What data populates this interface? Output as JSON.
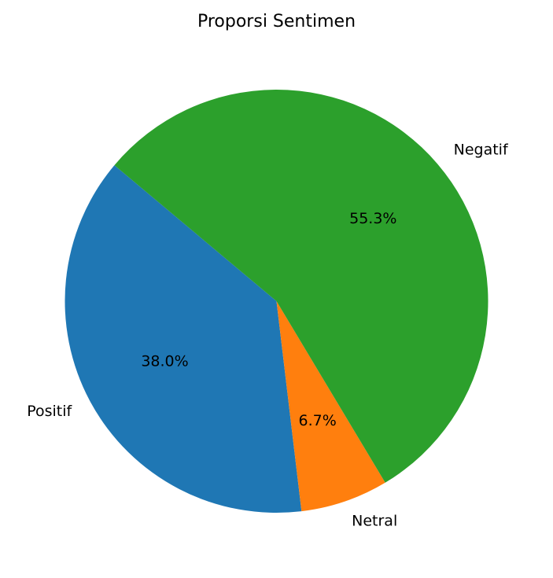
{
  "chart_data": {
    "type": "pie",
    "title": "Proporsi Sentimen",
    "start_angle_deg": 140,
    "direction": "counterclockwise",
    "slices": [
      {
        "label": "Positif",
        "value": 38.0,
        "pct_label": "38.0%",
        "color": "#1f77b4"
      },
      {
        "label": "Netral",
        "value": 6.7,
        "pct_label": "6.7%",
        "color": "#ff7f0e"
      },
      {
        "label": "Negatif",
        "value": 55.3,
        "pct_label": "55.3%",
        "color": "#2ca02c"
      }
    ]
  }
}
